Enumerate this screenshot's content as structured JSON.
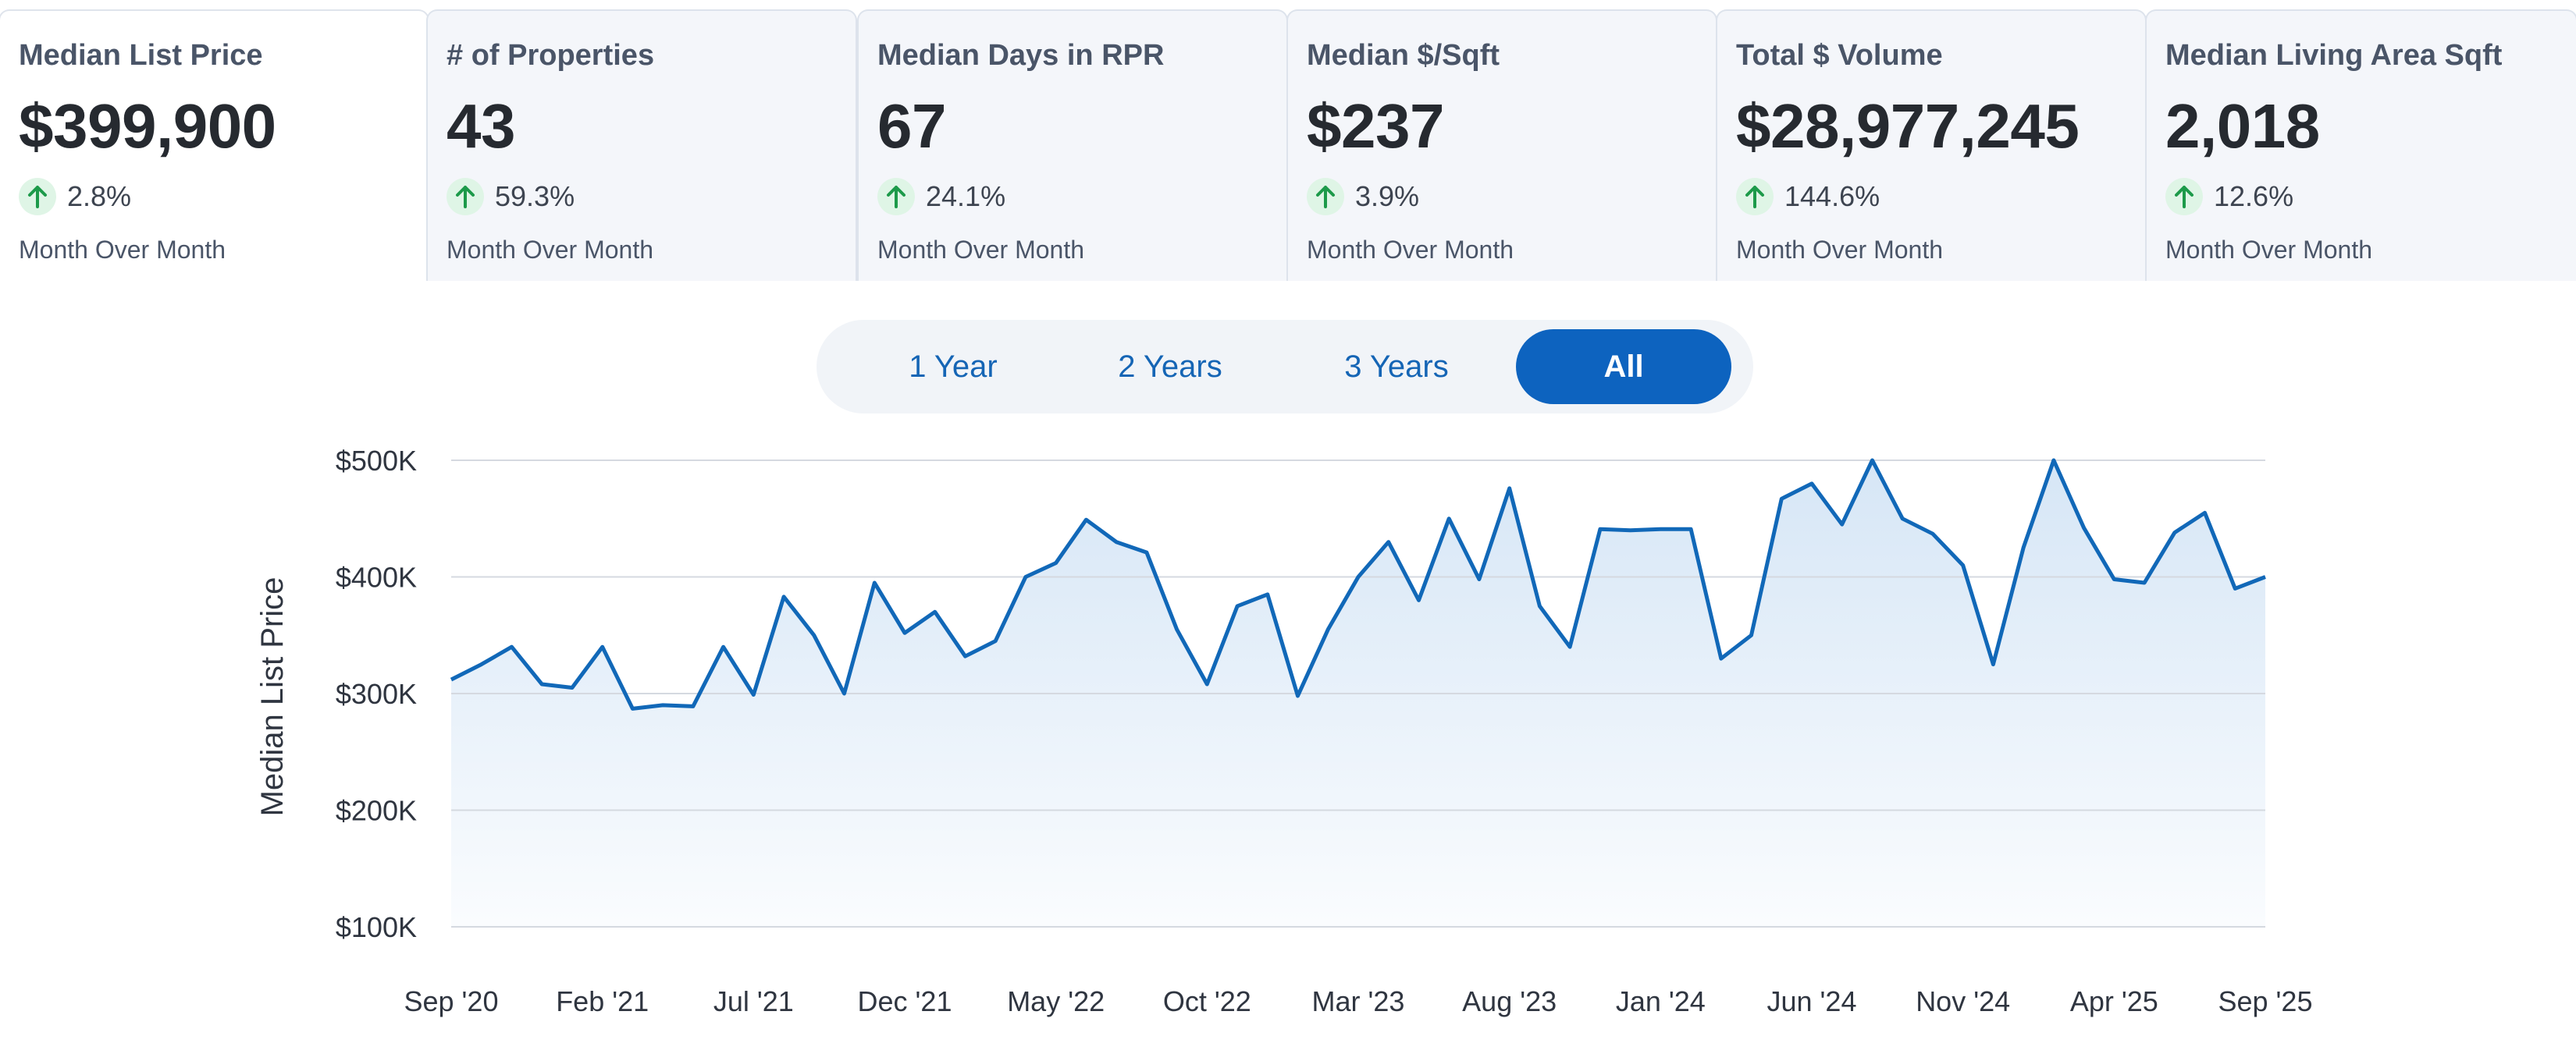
{
  "cards": [
    {
      "title": "Median List Price",
      "value": "$399,900",
      "change": "2.8%",
      "period": "Month Over Month"
    },
    {
      "title": "# of Properties",
      "value": "43",
      "change": "59.3%",
      "period": "Month Over Month"
    },
    {
      "title": "Median Days in RPR",
      "value": "67",
      "change": "24.1%",
      "period": "Month Over Month"
    },
    {
      "title": "Median $/Sqft",
      "value": "$237",
      "change": "3.9%",
      "period": "Month Over Month"
    },
    {
      "title": "Total $ Volume",
      "value": "$28,977,245",
      "change": "144.6%",
      "period": "Month Over Month"
    },
    {
      "title": "Median Living Area Sqft",
      "value": "2,018",
      "change": "12.6%",
      "period": "Month Over Month"
    }
  ],
  "range_options": [
    "1 Year",
    "2 Years",
    "3 Years",
    "All"
  ],
  "range_selected": "All",
  "colors": {
    "accent": "#0d63bf",
    "line": "#1168b8",
    "area": "#d6e6f6",
    "up": "#1d9a4a"
  },
  "chart_data": {
    "type": "area",
    "ylabel": "Median List Price",
    "xlabel": "",
    "ylim": [
      100000,
      500000
    ],
    "yticks": [
      100000,
      200000,
      300000,
      400000,
      500000
    ],
    "ytick_labels": [
      "$100K",
      "$200K",
      "$300K",
      "$400K",
      "$500K"
    ],
    "xtick_labels": [
      "Sep '20",
      "Feb '21",
      "Jul '21",
      "Dec '21",
      "May '22",
      "Oct '22",
      "Mar '23",
      "Aug '23",
      "Jan '24",
      "Jun '24",
      "Nov '24",
      "Apr '25",
      "Sep '25"
    ],
    "x": [
      "Sep '20",
      "Oct '20",
      "Nov '20",
      "Dec '20",
      "Jan '21",
      "Feb '21",
      "Mar '21",
      "Apr '21",
      "May '21",
      "Jun '21",
      "Jul '21",
      "Aug '21",
      "Sep '21",
      "Oct '21",
      "Nov '21",
      "Dec '21",
      "Jan '22",
      "Feb '22",
      "Mar '22",
      "Apr '22",
      "May '22",
      "Jun '22",
      "Jul '22",
      "Aug '22",
      "Sep '22",
      "Oct '22",
      "Nov '22",
      "Dec '22",
      "Jan '23",
      "Feb '23",
      "Mar '23",
      "Apr '23",
      "May '23",
      "Jun '23",
      "Jul '23",
      "Aug '23",
      "Sep '23",
      "Oct '23",
      "Nov '23",
      "Dec '23",
      "Jan '24",
      "Feb '24",
      "Mar '24",
      "Apr '24",
      "May '24",
      "Jun '24",
      "Jul '24",
      "Aug '24",
      "Sep '24",
      "Oct '24",
      "Nov '24",
      "Dec '24",
      "Jan '25",
      "Feb '25",
      "Mar '25",
      "Apr '25",
      "May '25",
      "Jun '25",
      "Jul '25",
      "Aug '25",
      "Sep '25"
    ],
    "series": [
      {
        "values": [
          312000,
          325000,
          340000,
          308000,
          305000,
          340000,
          287000,
          290000,
          289000,
          340000,
          299000,
          383000,
          350000,
          300000,
          395000,
          352000,
          370000,
          332000,
          345000,
          400000,
          412000,
          449000,
          430000,
          421000,
          355000,
          308000,
          375000,
          385000,
          298000,
          355000,
          400000,
          430000,
          380000,
          450000,
          398000,
          476000,
          375000,
          340000,
          441000,
          440000,
          441000,
          441000,
          330000,
          350000,
          467000,
          480000,
          445000,
          500000,
          450000,
          437000,
          410000,
          325000,
          425000,
          500000,
          442000,
          398000,
          395000,
          438000,
          455000,
          390000,
          400000
        ]
      }
    ],
    "grid": true,
    "legend": "none"
  }
}
